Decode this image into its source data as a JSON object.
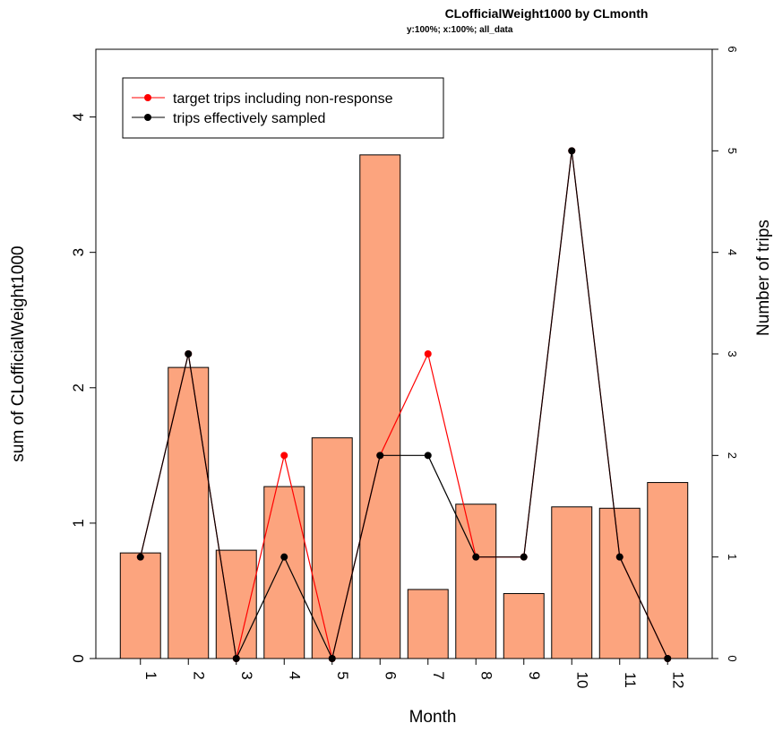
{
  "chart_data": {
    "type": "bar",
    "title": "CLofficialWeight1000 by CLmonth",
    "subtitle": "y:100%; x:100%; all_data",
    "xlabel": "Month",
    "ylabel": "sum of CLofficialWeight1000",
    "y2label": "Number of trips",
    "categories": [
      "1",
      "2",
      "3",
      "4",
      "5",
      "6",
      "7",
      "8",
      "9",
      "10",
      "11",
      "12"
    ],
    "values": [
      0.78,
      2.15,
      0.8,
      1.27,
      1.63,
      3.72,
      0.51,
      1.14,
      0.48,
      1.12,
      1.11,
      1.3
    ],
    "ylim": [
      0,
      4.5
    ],
    "yticks": [
      0,
      1,
      2,
      3,
      4
    ],
    "y2lim": [
      0,
      6
    ],
    "y2ticks": [
      0,
      1,
      2,
      3,
      4,
      5,
      6
    ],
    "bar_color": "#fca47e",
    "series": [
      {
        "name": "target trips including non-response",
        "axis": "right",
        "color": "#ff0000",
        "values": [
          1,
          3,
          0,
          2,
          0,
          2,
          3,
          1,
          1,
          5,
          1,
          0
        ]
      },
      {
        "name": "trips effectively sampled",
        "axis": "right",
        "color": "#000000",
        "values": [
          1,
          3,
          0,
          1,
          0,
          2,
          2,
          1,
          1,
          5,
          1,
          0
        ]
      }
    ],
    "legend": "top-left"
  }
}
